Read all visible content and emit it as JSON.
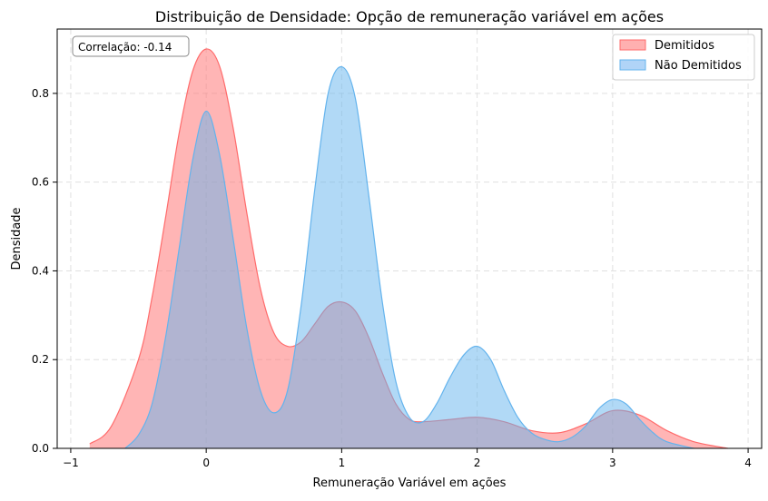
{
  "chart_data": {
    "type": "area",
    "title": "Distribuição de Densidade: Opção de remuneração variável em ações",
    "xlabel": "Remuneração Variável em ações",
    "ylabel": "Densidade",
    "xlim": [
      -1.1,
      4.1
    ],
    "ylim": [
      0,
      0.945
    ],
    "xticks": [
      -1,
      0,
      1,
      2,
      3,
      4
    ],
    "yticks": [
      0.0,
      0.2,
      0.4,
      0.6,
      0.8
    ],
    "grid": true,
    "legend_position": "top-right",
    "annotation": "Correlação: -0.14",
    "series": [
      {
        "name": "Demitidos",
        "color": "#ff6b6b",
        "fill": "#ffb0b0",
        "x": [
          -0.86,
          -0.7,
          -0.5,
          -0.4,
          -0.3,
          -0.2,
          -0.1,
          0.0,
          0.1,
          0.2,
          0.3,
          0.4,
          0.5,
          0.6,
          0.7,
          0.8,
          0.9,
          1.0,
          1.1,
          1.2,
          1.3,
          1.4,
          1.5,
          1.6,
          1.8,
          2.0,
          2.2,
          2.4,
          2.6,
          2.8,
          3.0,
          3.2,
          3.4,
          3.6,
          3.85
        ],
        "y": [
          0.01,
          0.05,
          0.2,
          0.34,
          0.52,
          0.71,
          0.85,
          0.9,
          0.86,
          0.72,
          0.53,
          0.36,
          0.26,
          0.23,
          0.24,
          0.28,
          0.32,
          0.33,
          0.31,
          0.25,
          0.17,
          0.1,
          0.065,
          0.06,
          0.065,
          0.07,
          0.06,
          0.04,
          0.035,
          0.055,
          0.085,
          0.075,
          0.04,
          0.015,
          0.0
        ]
      },
      {
        "name": "Não Demitidos",
        "color": "#63b3ed",
        "fill": "#b0d4f7",
        "x": [
          -0.6,
          -0.5,
          -0.4,
          -0.3,
          -0.2,
          -0.1,
          0.0,
          0.1,
          0.2,
          0.3,
          0.4,
          0.5,
          0.6,
          0.7,
          0.8,
          0.9,
          1.0,
          1.1,
          1.2,
          1.3,
          1.4,
          1.5,
          1.6,
          1.7,
          1.8,
          1.9,
          2.0,
          2.1,
          2.2,
          2.3,
          2.4,
          2.5,
          2.6,
          2.7,
          2.8,
          2.9,
          3.0,
          3.1,
          3.2,
          3.3,
          3.4,
          3.6
        ],
        "y": [
          0.0,
          0.03,
          0.1,
          0.25,
          0.45,
          0.65,
          0.76,
          0.66,
          0.47,
          0.27,
          0.13,
          0.08,
          0.13,
          0.32,
          0.58,
          0.8,
          0.86,
          0.79,
          0.57,
          0.33,
          0.15,
          0.07,
          0.06,
          0.1,
          0.16,
          0.21,
          0.23,
          0.2,
          0.13,
          0.07,
          0.035,
          0.02,
          0.015,
          0.025,
          0.05,
          0.09,
          0.11,
          0.1,
          0.065,
          0.035,
          0.015,
          0.0
        ]
      }
    ]
  }
}
